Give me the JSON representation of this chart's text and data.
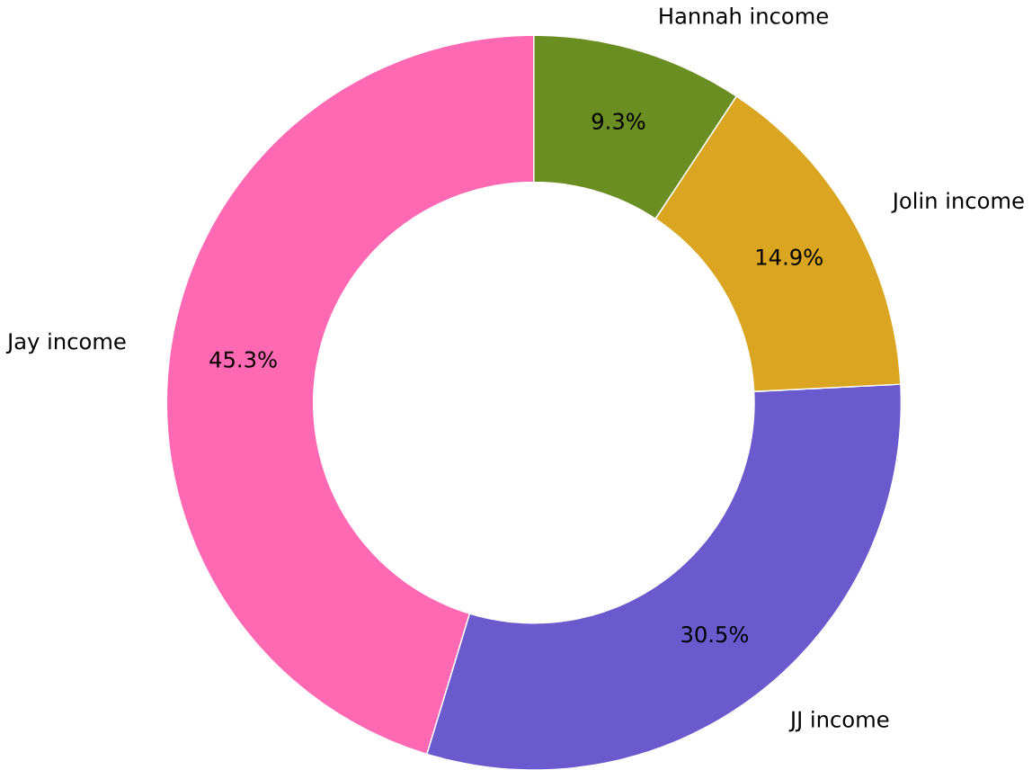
{
  "chart_data": {
    "type": "donut",
    "categories": [
      "Jay income",
      "JJ income",
      "Jolin income",
      "Hannah income"
    ],
    "values": [
      45.3,
      30.5,
      14.9,
      9.3
    ],
    "colors": [
      "#ff69b4",
      "#6a5acd",
      "#daa520",
      "#6b8e23"
    ],
    "value_labels": [
      "45.3%",
      "30.5%",
      "14.9%",
      "9.3%"
    ]
  }
}
